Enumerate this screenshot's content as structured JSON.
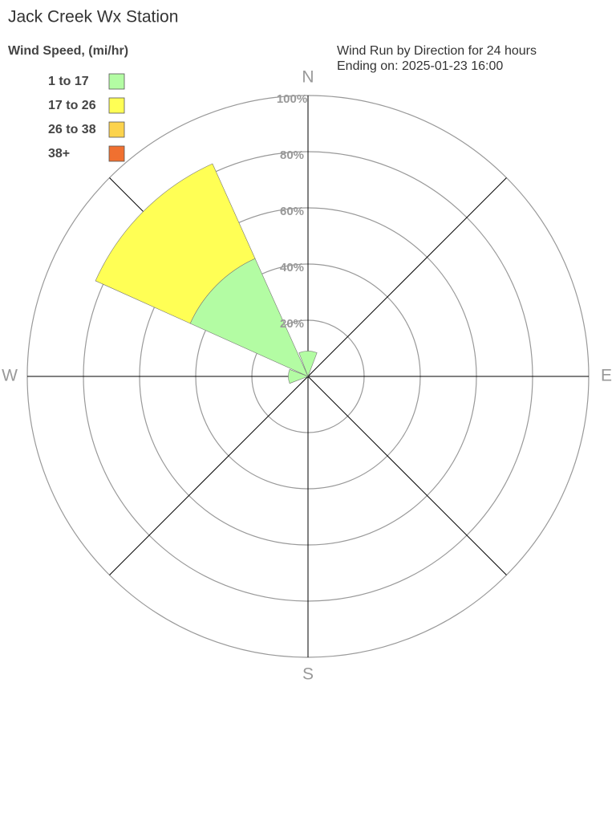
{
  "chart_data": {
    "type": "windrose",
    "title": "Jack Creek Wx Station",
    "legend_title": "Wind Speed, (mi/hr)",
    "subtitle": [
      "Wind Run by Direction for 24 hours",
      "Ending on: 2025-01-23 16:00"
    ],
    "categories": [
      "N",
      null,
      "E",
      null,
      "S",
      null,
      "W",
      null
    ],
    "series": [
      {
        "name": "1 to 17",
        "color": "#b3fca3",
        "values": [
          9,
          0,
          0,
          0,
          0,
          0,
          7,
          46
        ]
      },
      {
        "name": "17 to 26",
        "color": "#ffff55",
        "values": [
          0,
          0,
          0,
          0,
          0,
          0,
          0,
          37
        ]
      },
      {
        "name": "26 to 38",
        "color": "#fcd34c",
        "values": [
          0,
          0,
          0,
          0,
          0,
          0,
          0,
          0
        ]
      },
      {
        "name": "38+",
        "color": "#f07030",
        "values": [
          0,
          0,
          0,
          0,
          0,
          0,
          0,
          0
        ]
      }
    ],
    "rlim": [
      0,
      100
    ],
    "rticks": [
      {
        "value": 20,
        "label": "20%"
      },
      {
        "value": 40,
        "label": "40%"
      },
      {
        "value": 60,
        "label": "60%"
      },
      {
        "value": 80,
        "label": "80%"
      },
      {
        "value": 100,
        "label": "100%"
      }
    ]
  }
}
